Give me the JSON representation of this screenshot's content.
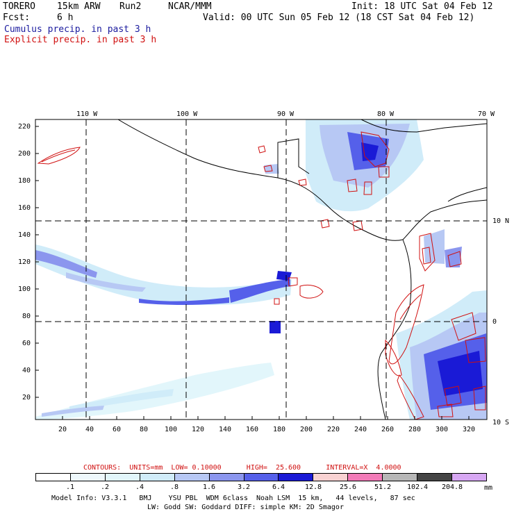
{
  "header": {
    "model_name": "TORERO",
    "resolution": "15km ARW",
    "run": "Run2",
    "org": "NCAR/MMM",
    "init_label": "Init: 18 UTC Sat 04 Feb 12",
    "fcst_label": "Fcst:",
    "fcst_value": "6 h",
    "valid_label": "Valid: 00 UTC Sun 05 Feb 12 (18 CST Sat 04 Feb 12)",
    "legend_cumulus": "Cumulus precip. in past 3 h",
    "legend_explicit": "Explicit precip. in past 3 h"
  },
  "map": {
    "top_lon_labels": [
      "110 W",
      "100 W",
      "90 W",
      "80 W",
      "70 W"
    ],
    "right_lat_labels": [
      "10 N",
      "0",
      "10 S"
    ],
    "left_ticks": [
      "220",
      "200",
      "180",
      "160",
      "140",
      "120",
      "100",
      "80",
      "60",
      "40",
      "20"
    ],
    "bottom_ticks": [
      "20",
      "40",
      "60",
      "80",
      "100",
      "120",
      "140",
      "160",
      "180",
      "200",
      "220",
      "240",
      "260",
      "280",
      "300",
      "320"
    ],
    "grid_style": "dashed"
  },
  "contour_info": {
    "text": "CONTOURS:  UNITS=mm  LOW= 0.10000      HIGH=  25.600      INTERVAL=X  4.0000"
  },
  "colorbar": {
    "labels": [
      ".1",
      ".2",
      ".4",
      ".8",
      "1.6",
      "3.2",
      "6.4",
      "12.8",
      "25.6",
      "51.2",
      "102.4",
      "204.8"
    ],
    "unit": "mm",
    "colors": [
      "#ffffff",
      "#eef8fc",
      "#e2f6fb",
      "#d0ecf9",
      "#b7c8f4",
      "#8b96ee",
      "#5560ea",
      "#1a1ad6",
      "#f8d2d2",
      "#f27bb8",
      "#b7b7b7",
      "#454545",
      "#d7a7f3"
    ]
  },
  "model_info": {
    "line1": "Model Info: V3.3.1   BMJ    YSU PBL  WDM 6class  Noah LSM  15 km,   44 levels,   87 sec",
    "line2": "LW: Godd SW: Goddard DIFF: simple KM: 2D Smagor"
  }
}
